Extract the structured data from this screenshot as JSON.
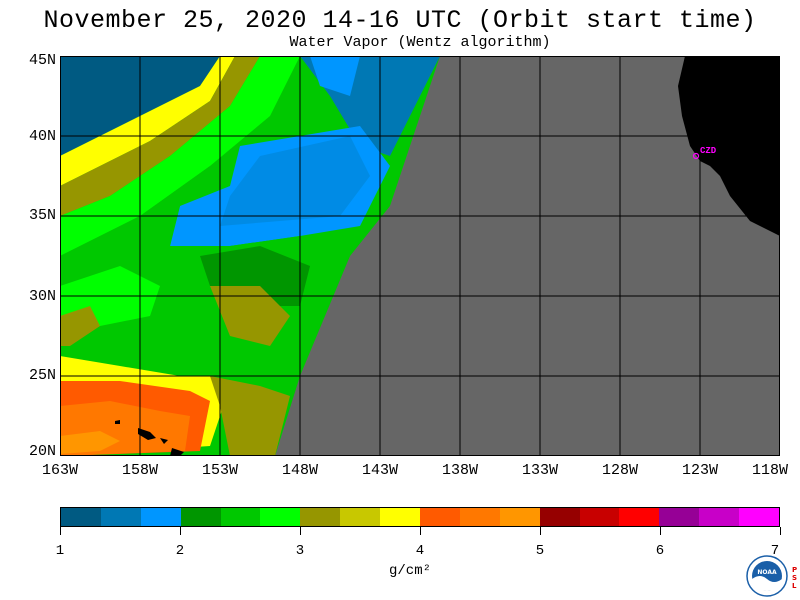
{
  "title": "November 25, 2020  14-16 UTC  (Orbit start time)",
  "subtitle": "Water Vapor (Wentz algorithm)",
  "map": {
    "lat_labels": [
      "45N",
      "40N",
      "35N",
      "30N",
      "25N",
      "20N"
    ],
    "lon_labels": [
      "163W",
      "158W",
      "153W",
      "148W",
      "143W",
      "138W",
      "133W",
      "128W",
      "123W",
      "118W"
    ],
    "station_label": "CZD",
    "no_data_color": "#666666",
    "land_color": "#000000"
  },
  "colorbar": {
    "colors": [
      "#005a82",
      "#0078b4",
      "#0096ff",
      "#009600",
      "#00c800",
      "#00ff00",
      "#969600",
      "#c8c800",
      "#ffff00",
      "#ff5a00",
      "#ff7800",
      "#ff9600",
      "#960000",
      "#c80000",
      "#ff0000",
      "#960096",
      "#c800c8",
      "#ff00ff"
    ],
    "ticks": [
      "1",
      "2",
      "3",
      "4",
      "5",
      "6",
      "7"
    ],
    "units": "g/cm²"
  },
  "logo": {
    "text": "NOAA",
    "side_text": "PSL"
  }
}
